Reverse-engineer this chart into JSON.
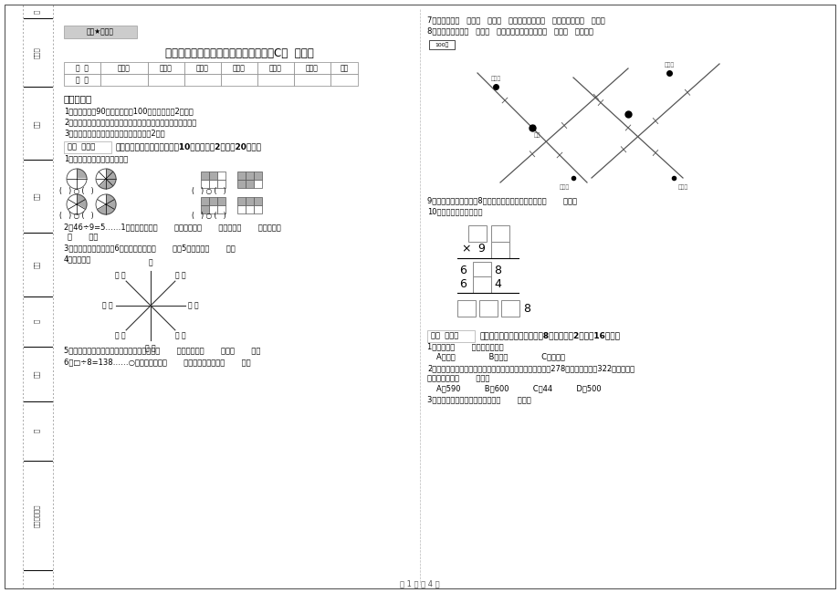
{
  "title": "沪教版三年级数学下学期期末考试试题C卷  附答案",
  "stamp_text": "绝密★启用前",
  "table_headers": [
    "题  号",
    "填空题",
    "选择题",
    "判断题",
    "计算题",
    "综合题",
    "应用题",
    "总分"
  ],
  "table_row1_label": "得  分",
  "section1_title": "考试须知：",
  "s1_i1": "1、考试时间：90分钟，满分为100分（含卷面分2分）。",
  "s1_i2": "2、请首先按要求在试卷的指定位置填写您的姓名、班级、学号。",
  "s1_i3": "3、不要在试卷上乱写乱画，卷面不整洁扣2分。",
  "score_label": "得分  评卷人",
  "s2_title": "一、用心思考，正确填空（共10小题，每题2分，共20分）。",
  "q1": "1、看图写分数，并比较大小。",
  "q2": "2、46÷9=5……1中，被除数是（       ），除数是（       ），商是（       ），余数是（       ）。",
  "q2b": "（       ）。",
  "q3": "3、把一根绳子平均分成6份，每份是它的（       ），5份是它的（       ）。",
  "q4": "4、填一填。",
  "q5": "5、在进位加法中，不管哪一位上的数相加满（       ），都要向（       ）进（       ）。",
  "q6": "6、□÷8=138……○，余数最大填（       ），这时被除数是（       ）。",
  "q7": "7、你出生于（   ）年（   ）月（   ）日，那一年是（   ）年，全年有（   ）天。",
  "q8": "8、小红家在学校（   ）方（   ）米处；小明家在学校（   ）方（   ）米处。",
  "q9": "9、小明从一楼到三楼用8秒，照这样他从一楼到五楼用（       ）秒。",
  "q10": "10、在里填上适当的数。",
  "s3_title": "二、反复比较，慎重选择（共8小题，每题2分，共16分）。",
  "r1": "1、四边形（       ）平行四边形。",
  "r1c": "A、一定              B、可能              C、不可能",
  "r2a": "2、广州新电视塔是广州市目前最高的建筑，它比中信大厦高278米，中信大厦高322米，那么广",
  "r2b": "州新电视塔高（       ）米。",
  "r2c": "A、590          B、600          C、44          D、500",
  "r3": "3、最大的三位数是最大一位数的（       ）倍。",
  "footer": "第 1 页 共 4 页",
  "north": "北",
  "scale_label": "100米",
  "xiao_hong": "小红家",
  "xiao_ming": "小明家",
  "school": "学校",
  "xiao_ming2": "小明家",
  "xiao_hong2": "小红家",
  "sidebar": [
    "印卷人",
    "校对",
    "姓名",
    "班级",
    "内",
    "学校",
    "街",
    "乡镇（街道）"
  ]
}
